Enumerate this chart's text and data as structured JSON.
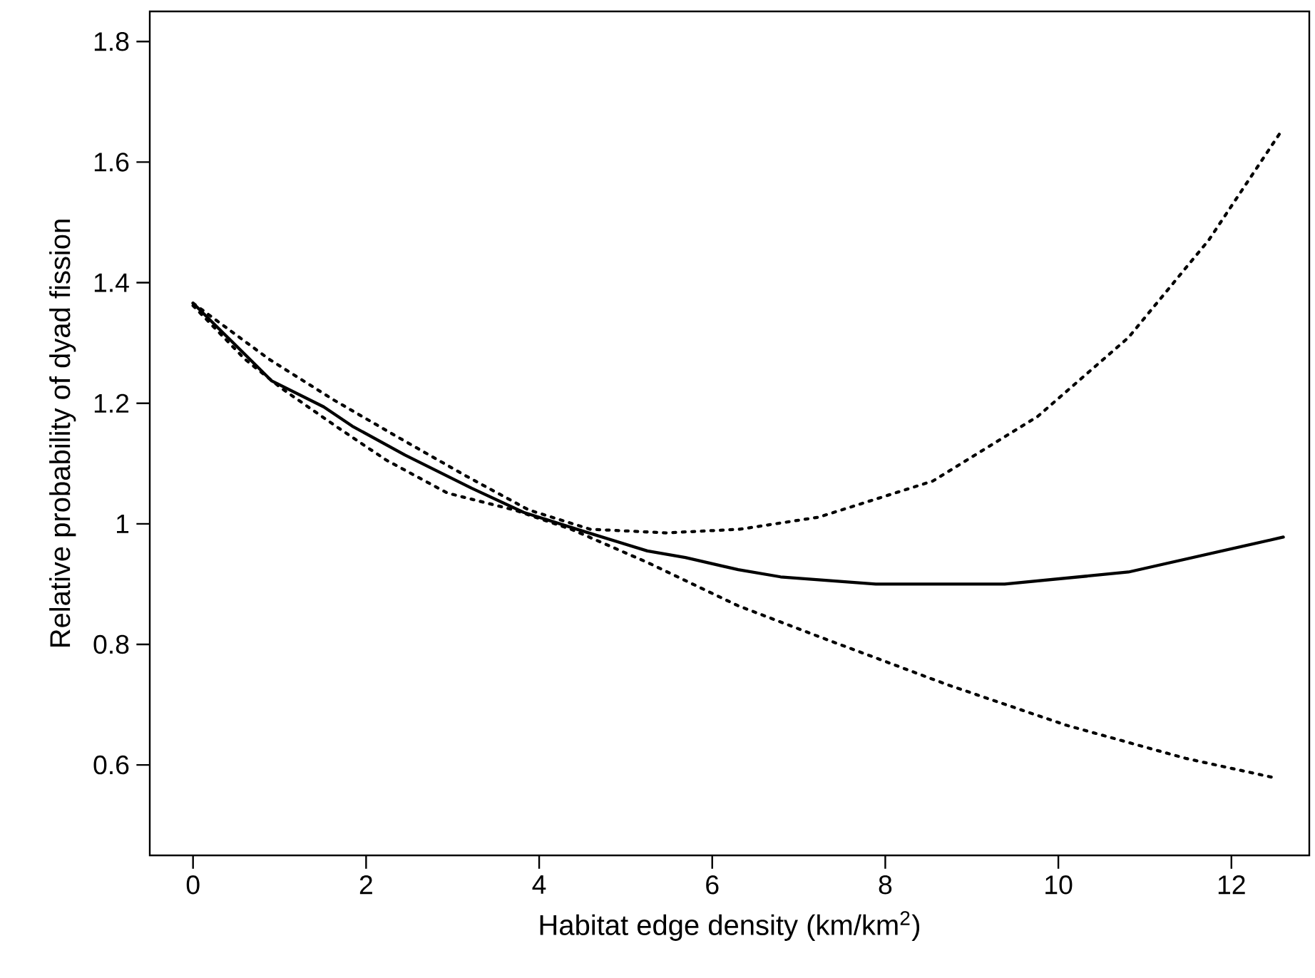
{
  "chart_data": {
    "type": "line",
    "xlabel": "Habitat edge density (km/km$^{2}$)",
    "ylabel": "Relative probability of dyad fission",
    "xlim": [
      -0.5,
      12.9
    ],
    "ylim": [
      0.45,
      1.85
    ],
    "xticks": [
      0,
      2,
      4,
      6,
      8,
      10,
      12
    ],
    "yticks": [
      0.6,
      0.8,
      1,
      1.2,
      1.4,
      1.6,
      1.8
    ],
    "grid": false,
    "marker": "none",
    "series": [
      {
        "color": "#000000",
        "line_style": "solid",
        "x": [
          0,
          0.91,
          1.51,
          1.84,
          2.45,
          3.22,
          3.82,
          4.48,
          5.25,
          5.69,
          6.3,
          6.79,
          7.89,
          9.38,
          10.81,
          12.6
        ],
        "values": [
          1.366,
          1.237,
          1.194,
          1.162,
          1.114,
          1.059,
          1.019,
          0.989,
          0.955,
          0.944,
          0.924,
          0.912,
          0.9,
          0.9,
          0.92,
          0.978
        ]
      },
      {
        "color": "#000000",
        "line_style": "dotted",
        "x": [
          0,
          0.88,
          1.62,
          2.34,
          3.16,
          3.88,
          4.59,
          5.47,
          6.32,
          7.23,
          8.55,
          9.76,
          10.81,
          11.74,
          12.57
        ],
        "values": [
          1.366,
          1.273,
          1.206,
          1.146,
          1.079,
          1.023,
          0.991,
          0.985,
          0.991,
          1.011,
          1.071,
          1.178,
          1.309,
          1.471,
          1.65
        ]
      },
      {
        "color": "#000000",
        "line_style": "dotted",
        "x": [
          0,
          0.6,
          1.02,
          1.68,
          2.23,
          2.94,
          3.71,
          4.37,
          5.25,
          6.3,
          7.23,
          8.72,
          10.09,
          11.47,
          12.49
        ],
        "values": [
          1.362,
          1.273,
          1.225,
          1.159,
          1.106,
          1.051,
          1.023,
          0.991,
          0.936,
          0.864,
          0.813,
          0.733,
          0.666,
          0.611,
          0.579
        ]
      }
    ]
  }
}
